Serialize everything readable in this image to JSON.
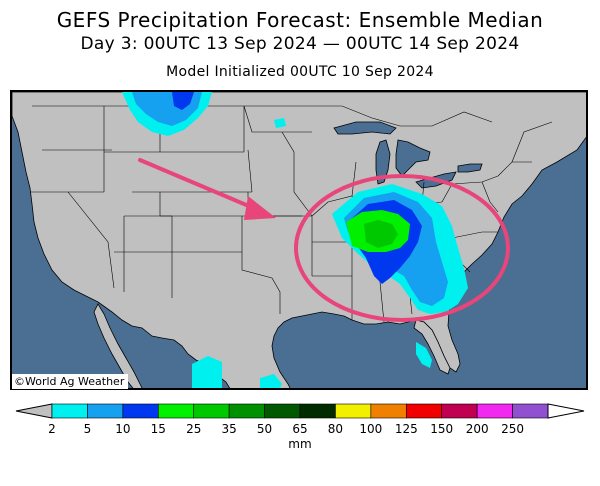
{
  "title": "GEFS Precipitation Forecast: Ensemble Median",
  "subtitle": "Day 3: 00UTC 13 Sep 2024 — 00UTC 14 Sep 2024",
  "init_line": "Model Initialized 00UTC 10 Sep 2024",
  "credit": "©World Ag Weather",
  "legend": {
    "unit": "mm",
    "ticks": [
      "2",
      "5",
      "10",
      "15",
      "25",
      "35",
      "50",
      "65",
      "80",
      "100",
      "125",
      "150",
      "200",
      "250"
    ],
    "colors": [
      "#00f0f0",
      "#16a0f0",
      "#0038f0",
      "#00f000",
      "#00c800",
      "#009000",
      "#005800",
      "#002a00",
      "#f0f000",
      "#f08000",
      "#f00000",
      "#c00050",
      "#f028f0",
      "#9050d0"
    ],
    "under_color": "#c0c0c0",
    "over_color": "#ffffff"
  },
  "colors": {
    "land": "#c0c0c0",
    "water": "#4a6f93",
    "annotation": "#e8457a"
  }
}
